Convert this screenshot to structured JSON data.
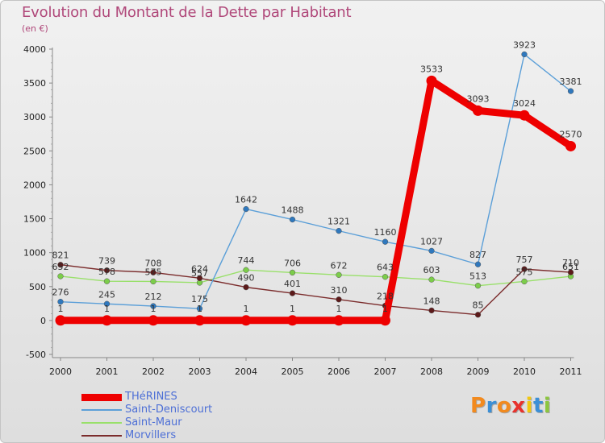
{
  "chart_data": {
    "type": "line",
    "title": "Evolution du Montant de la Dette par Habitant",
    "subtitle": "(en €)",
    "xlabel": "",
    "ylabel": "",
    "x": [
      "2000",
      "2001",
      "2002",
      "2003",
      "2004",
      "2005",
      "2006",
      "2007",
      "2008",
      "2009",
      "2010",
      "2011"
    ],
    "ylim": [
      -500,
      4000
    ],
    "yticks": [
      -500,
      0,
      500,
      1000,
      1500,
      2000,
      2500,
      3000,
      3500,
      4000
    ],
    "grid": false,
    "legend_position": "bottom-left",
    "series": [
      {
        "name": "Saint-Maur",
        "color": "#99e06a",
        "point_color": "#7ccd4a",
        "style": "normal",
        "values": [
          652,
          578,
          575,
          557,
          744,
          706,
          672,
          643,
          603,
          513,
          575,
          651
        ]
      },
      {
        "name": "Morvillers",
        "color": "#7b2c2c",
        "point_color": "#5c1a1a",
        "style": "normal",
        "values": [
          821,
          739,
          708,
          624,
          490,
          401,
          310,
          218,
          148,
          85,
          757,
          710
        ]
      },
      {
        "name": "Saint-Deniscourt",
        "color": "#5b9fd8",
        "point_color": "#2f78bd",
        "style": "normal",
        "values": [
          276,
          245,
          212,
          175,
          1642,
          1488,
          1321,
          1160,
          1027,
          827,
          3923,
          3381
        ]
      },
      {
        "name": "THéRINES",
        "color": "#ee0000",
        "point_color": "#ee0000",
        "style": "bold",
        "values": [
          1,
          1,
          1,
          1,
          1,
          1,
          1,
          1,
          3533,
          3093,
          3024,
          2570
        ]
      }
    ],
    "legend_order": [
      "THéRINES",
      "Saint-Deniscourt",
      "Saint-Maur",
      "Morvillers"
    ]
  },
  "branding": {
    "logo_letters": [
      "P",
      "r",
      "o",
      "x",
      "i",
      "t",
      "i"
    ],
    "logo_colors": [
      "#f28a1e",
      "#3b8fd6",
      "#f28a1e",
      "#e8322d",
      "#f2c80f",
      "#3b8fd6",
      "#8cc63f"
    ]
  }
}
